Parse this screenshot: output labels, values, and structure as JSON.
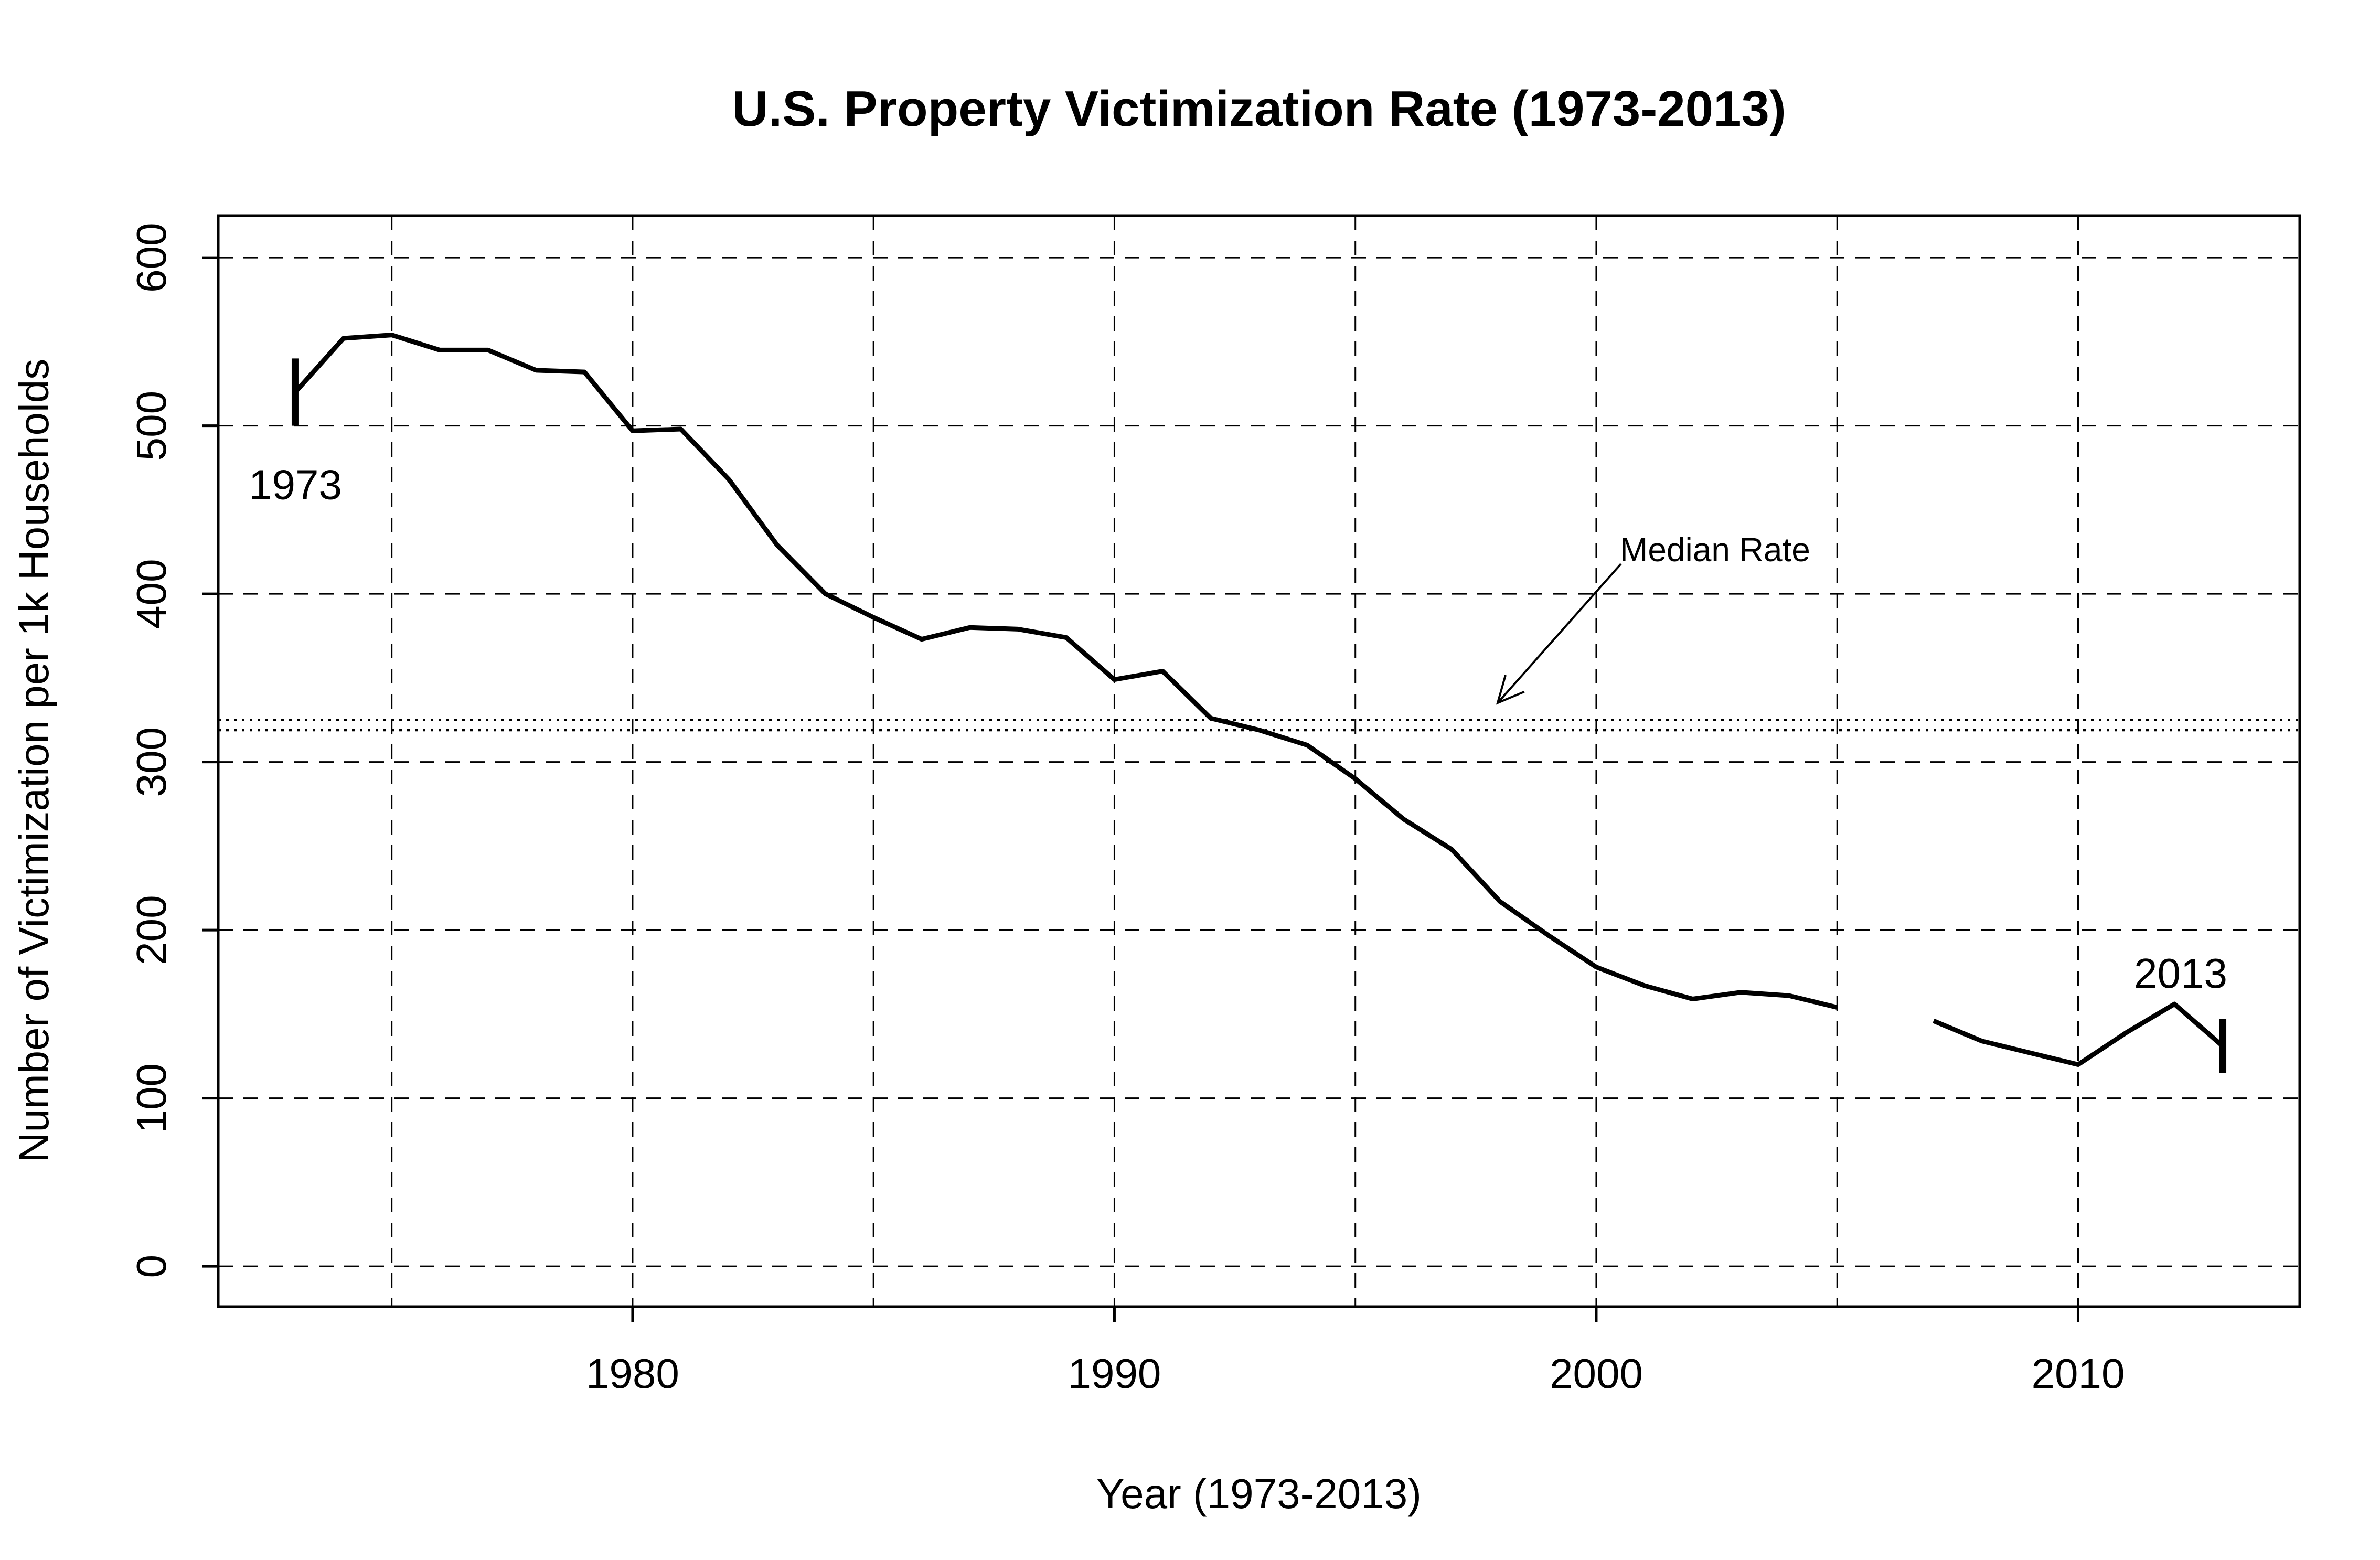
{
  "chart_data": {
    "type": "line",
    "title": "U.S. Property Victimization Rate (1973-2013)",
    "xlabel": "Year (1973-2013)",
    "ylabel": "Number of Victimization per 1k Households",
    "xlim": [
      1971.4,
      2014.6
    ],
    "ylim": [
      -24,
      625
    ],
    "xticks": [
      1980,
      1990,
      2000,
      2010
    ],
    "yticks": [
      0,
      100,
      200,
      300,
      400,
      500,
      600
    ],
    "grid": true,
    "grid_vlines": [
      1975,
      1980,
      1985,
      1990,
      1995,
      2000,
      2005,
      2010
    ],
    "series": [
      {
        "x": [
          1973,
          1974,
          1975,
          1976,
          1977,
          1978,
          1979,
          1980,
          1981,
          1982,
          1983,
          1984,
          1985,
          1986,
          1987,
          1988,
          1989,
          1990,
          1991,
          1992,
          1993,
          1994,
          1995,
          1996,
          1997,
          1998,
          1999,
          2000,
          2001,
          2002,
          2003,
          2004,
          2005,
          2006,
          2007,
          2008,
          2009,
          2010,
          2011,
          2012,
          2013
        ],
        "y": [
          520,
          552,
          554,
          545,
          545,
          533,
          532,
          497,
          498,
          468,
          429,
          400,
          386,
          373,
          380,
          379,
          374,
          349,
          354,
          326,
          319,
          310,
          290,
          266,
          248,
          217,
          197,
          178,
          167,
          159,
          163,
          161,
          154,
          null,
          146,
          134,
          127,
          120,
          139,
          156,
          131
        ]
      }
    ],
    "median_lines": [
      319,
      325
    ],
    "annotations": {
      "start_label": "1973",
      "end_label": "2013",
      "median_label": "Median Rate"
    }
  }
}
